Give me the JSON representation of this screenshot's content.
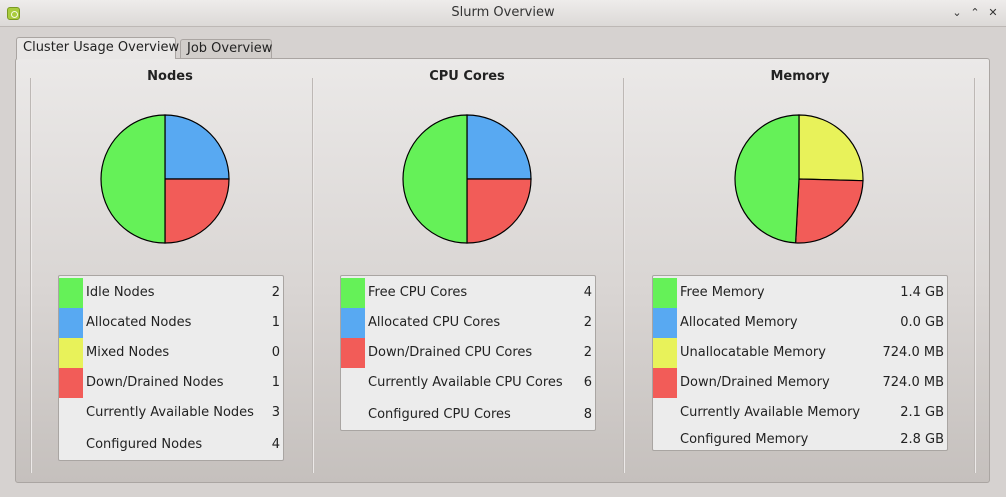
{
  "window": {
    "title": "Slurm Overview"
  },
  "tabs": [
    "Cluster Usage Overview",
    "Job Overview"
  ],
  "colors": {
    "green": "#65f158",
    "blue": "#58a9f2",
    "yellow": "#e8f25a",
    "red": "#f25c58"
  },
  "nodes": {
    "title": "Nodes",
    "rows": [
      {
        "label": "Idle Nodes",
        "value": "2",
        "color": "#65f158"
      },
      {
        "label": "Allocated Nodes",
        "value": "1",
        "color": "#58a9f2"
      },
      {
        "label": "Mixed Nodes",
        "value": "0",
        "color": "#e8f25a"
      },
      {
        "label": "Down/Drained Nodes",
        "value": "1",
        "color": "#f25c58"
      },
      {
        "label": "Currently Available Nodes",
        "value": "3"
      },
      {
        "label": "Configured Nodes",
        "value": "4"
      }
    ]
  },
  "cpu": {
    "title": "CPU Cores",
    "rows": [
      {
        "label": "Free CPU Cores",
        "value": "4",
        "color": "#65f158"
      },
      {
        "label": "Allocated CPU Cores",
        "value": "2",
        "color": "#58a9f2"
      },
      {
        "label": "Down/Drained CPU Cores",
        "value": "2",
        "color": "#f25c58"
      },
      {
        "label": "Currently Available CPU Cores",
        "value": "6"
      },
      {
        "label": "Configured CPU Cores",
        "value": "8"
      }
    ]
  },
  "memory": {
    "title": "Memory",
    "rows": [
      {
        "label": "Free Memory",
        "value": "1.4 GB",
        "color": "#65f158"
      },
      {
        "label": "Allocated Memory",
        "value": "0.0 GB",
        "color": "#58a9f2"
      },
      {
        "label": "Unallocatable Memory",
        "value": "724.0 MB",
        "color": "#e8f25a"
      },
      {
        "label": "Down/Drained Memory",
        "value": "724.0 MB",
        "color": "#f25c58"
      },
      {
        "label": "Currently Available Memory",
        "value": "2.1 GB"
      },
      {
        "label": "Configured Memory",
        "value": "2.8 GB"
      }
    ]
  },
  "chart_data": [
    {
      "type": "pie",
      "title": "Nodes",
      "categories": [
        "Idle Nodes",
        "Allocated Nodes",
        "Mixed Nodes",
        "Down/Drained Nodes"
      ],
      "values": [
        2,
        1,
        0,
        1
      ]
    },
    {
      "type": "pie",
      "title": "CPU Cores",
      "categories": [
        "Free CPU Cores",
        "Allocated CPU Cores",
        "Down/Drained CPU Cores"
      ],
      "values": [
        4,
        2,
        2
      ]
    },
    {
      "type": "pie",
      "title": "Memory",
      "categories": [
        "Free Memory",
        "Allocated Memory",
        "Unallocatable Memory",
        "Down/Drained Memory"
      ],
      "values": [
        1.4,
        0.0,
        0.724,
        0.724
      ]
    }
  ]
}
